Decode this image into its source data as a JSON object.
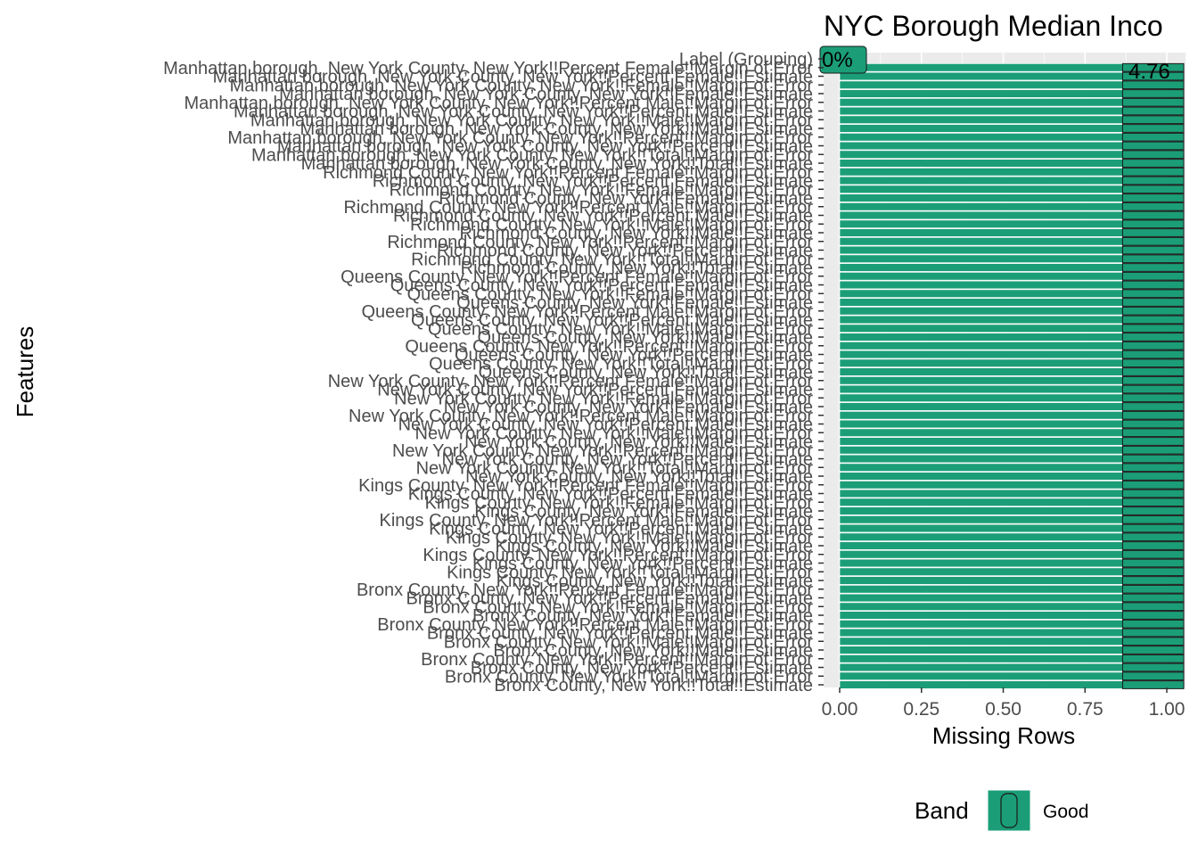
{
  "chart_data": {
    "type": "bar",
    "orientation": "horizontal",
    "stacked": true,
    "title": "NYC Borough Median Inco",
    "xlabel": "Missing Rows",
    "ylabel": "Features",
    "xlim": [
      0,
      1
    ],
    "x_ticks": [
      "0.00",
      "0.25",
      "0.50",
      "0.75",
      "1.00"
    ],
    "grid": true,
    "categories": [
      "Label (Grouping)",
      "Manhattan borough, New York County, New York!!Percent Female!!Margin of Error",
      "Manhattan borough, New York County, New York!!Percent Female!!Estimate",
      "Manhattan borough, New York County, New York!!Female!!Margin of Error",
      "Manhattan borough, New York County, New York!!Female!!Estimate",
      "Manhattan borough, New York County, New York!!Percent Male!!Margin of Error",
      "Manhattan borough, New York County, New York!!Percent Male!!Estimate",
      "Manhattan borough, New York County, New York!!Male!!Margin of Error",
      "Manhattan borough, New York County, New York!!Male!!Estimate",
      "Manhattan borough, New York County, New York!!Percent!!Margin of Error",
      "Manhattan borough, New York County, New York!!Percent!!Estimate",
      "Manhattan borough, New York County, New York!!Total!!Margin of Error",
      "Manhattan borough, New York County, New York!!Total!!Estimate",
      "Richmond County, New York!!Percent Female!!Margin of Error",
      "Richmond County, New York!!Percent Female!!Estimate",
      "Richmond County, New York!!Female!!Margin of Error",
      "Richmond County, New York!!Female!!Estimate",
      "Richmond County, New York!!Percent Male!!Margin of Error",
      "Richmond County, New York!!Percent Male!!Estimate",
      "Richmond County, New York!!Male!!Margin of Error",
      "Richmond County, New York!!Male!!Estimate",
      "Richmond County, New York!!Percent!!Margin of Error",
      "Richmond County, New York!!Percent!!Estimate",
      "Richmond County, New York!!Total!!Margin of Error",
      "Richmond County, New York!!Total!!Estimate",
      "Queens County, New York!!Percent Female!!Margin of Error",
      "Queens County, New York!!Percent Female!!Estimate",
      "Queens County, New York!!Female!!Margin of Error",
      "Queens County, New York!!Female!!Estimate",
      "Queens County, New York!!Percent Male!!Margin of Error",
      "Queens County, New York!!Percent Male!!Estimate",
      "Queens County, New York!!Male!!Margin of Error",
      "Queens County, New York!!Male!!Estimate",
      "Queens County, New York!!Percent!!Margin of Error",
      "Queens County, New York!!Percent!!Estimate",
      "Queens County, New York!!Total!!Margin of Error",
      "Queens County, New York!!Total!!Estimate",
      "New York County, New York!!Percent Female!!Margin of Error",
      "New York County, New York!!Percent Female!!Estimate",
      "New York County, New York!!Female!!Margin of Error",
      "New York County, New York!!Female!!Estimate",
      "New York County, New York!!Percent Male!!Margin of Error",
      "New York County, New York!!Percent Male!!Estimate",
      "New York County, New York!!Male!!Margin of Error",
      "New York County, New York!!Male!!Estimate",
      "New York County, New York!!Percent!!Margin of Error",
      "New York County, New York!!Percent!!Estimate",
      "New York County, New York!!Total!!Margin of Error",
      "New York County, New York!!Total!!Estimate",
      "Kings County, New York!!Percent Female!!Margin of Error",
      "Kings County, New York!!Percent Female!!Estimate",
      "Kings County, New York!!Female!!Margin of Error",
      "Kings County, New York!!Female!!Estimate",
      "Kings County, New York!!Percent Male!!Margin of Error",
      "Kings County, New York!!Percent Male!!Estimate",
      "Kings County, New York!!Male!!Margin of Error",
      "Kings County, New York!!Male!!Estimate",
      "Kings County, New York!!Percent!!Margin of Error",
      "Kings County, New York!!Percent!!Estimate",
      "Kings County, New York!!Total!!Margin of Error",
      "Kings County, New York!!Total!!Estimate",
      "Bronx County, New York!!Percent Female!!Margin of Error",
      "Bronx County, New York!!Percent Female!!Estimate",
      "Bronx County, New York!!Female!!Margin of Error",
      "Bronx County, New York!!Female!!Estimate",
      "Bronx County, New York!!Percent Male!!Margin of Error",
      "Bronx County, New York!!Percent Male!!Estimate",
      "Bronx County, New York!!Male!!Margin of Error",
      "Bronx County, New York!!Male!!Estimate",
      "Bronx County, New York!!Percent!!Margin of Error",
      "Bronx County, New York!!Percent!!Estimate",
      "Bronx County, New York!!Total!!Margin of Error",
      "Bronx County, New York!!Total!!Estimate"
    ],
    "first_row_value": 0,
    "other_rows_value": 1,
    "first_row_label": "0%",
    "other_rows_label": "4.76",
    "highlight_from": 0.865,
    "fill_color": "#1b9e77",
    "panel_color": "#ebebeb",
    "grid_color": "#ffffff",
    "legend": {
      "title": "Band",
      "entries": [
        {
          "name": "Good",
          "color": "#1b9e77"
        }
      ],
      "position": "bottom"
    }
  }
}
